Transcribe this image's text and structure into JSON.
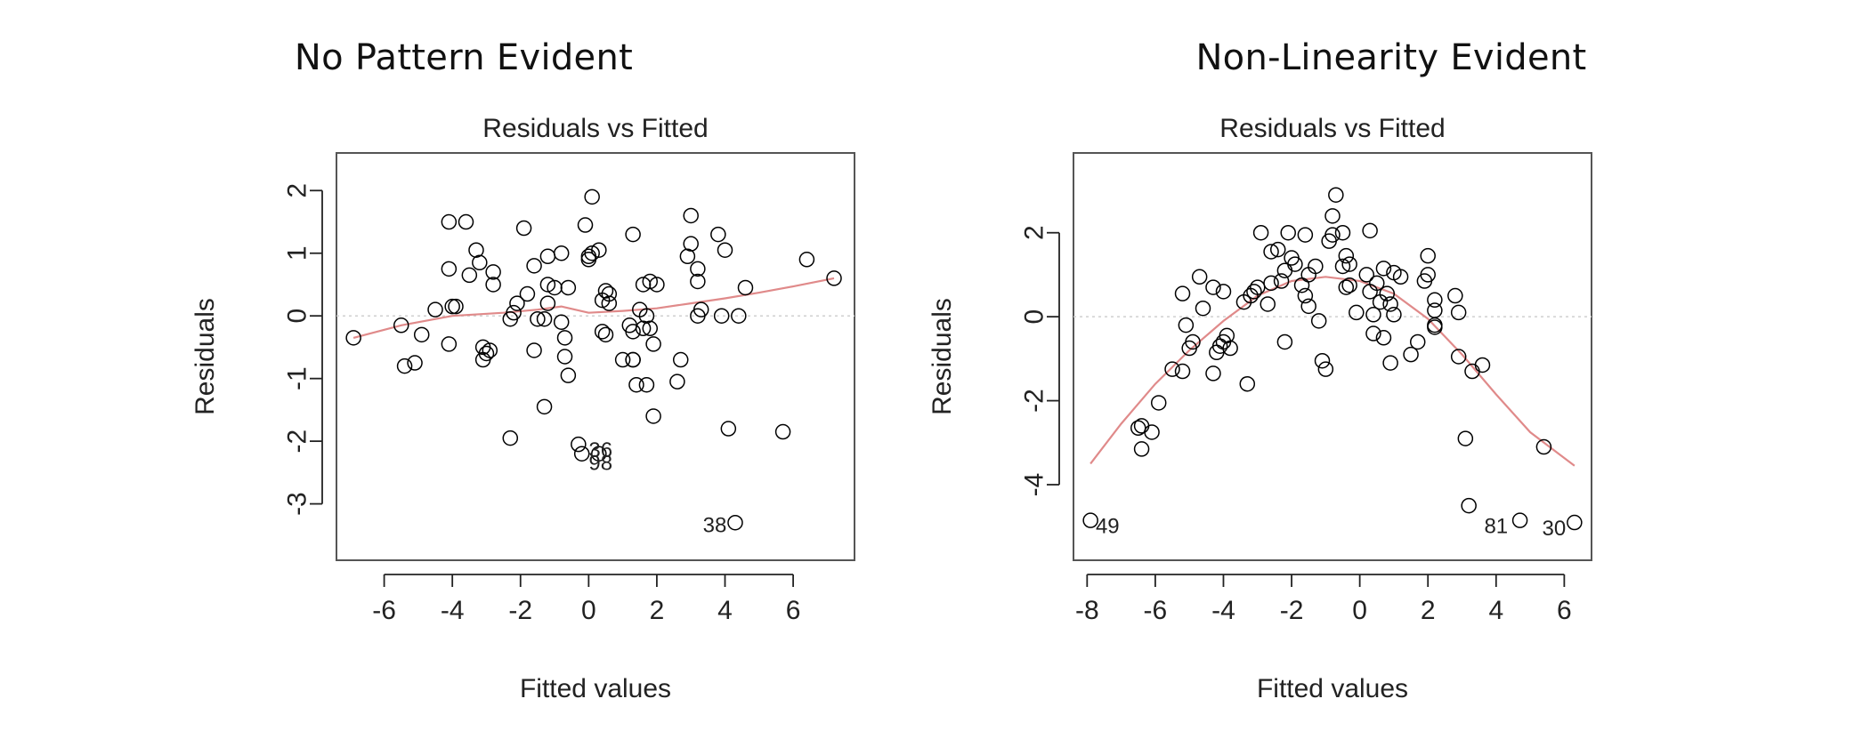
{
  "chart_data": [
    {
      "type": "scatter",
      "heading": "No Pattern Evident",
      "title": "Residuals vs Fitted",
      "xlabel": "Fitted values",
      "ylabel": "Residuals",
      "xlim": [
        -7.4,
        7.8
      ],
      "ylim": [
        -3.9,
        2.6
      ],
      "xticks": [
        -6,
        -4,
        -2,
        0,
        2,
        4,
        6
      ],
      "yticks": [
        -3,
        -2,
        -1,
        0,
        1,
        2
      ],
      "xtick_labels": [
        "-6",
        "-4",
        "-2",
        "0",
        "2",
        "4",
        "6"
      ],
      "ytick_labels": [
        "-3",
        "-2",
        "-1",
        "0",
        "1",
        "2"
      ],
      "grid": false,
      "reference_line_y": 0,
      "colors": {
        "points": "#000000",
        "smooth": "#e08a8a",
        "refline": "#cfcfcf",
        "frame": "#555555"
      },
      "points": [
        [
          -6.9,
          -0.35
        ],
        [
          -5.5,
          -0.15
        ],
        [
          -5.4,
          -0.8
        ],
        [
          -5.1,
          -0.75
        ],
        [
          -4.9,
          -0.3
        ],
        [
          -4.5,
          0.1
        ],
        [
          -4.1,
          1.5
        ],
        [
          -4.1,
          0.75
        ],
        [
          -4.0,
          0.15
        ],
        [
          -3.9,
          0.15
        ],
        [
          -4.1,
          -0.45
        ],
        [
          -3.6,
          1.5
        ],
        [
          -3.5,
          0.65
        ],
        [
          -3.3,
          1.05
        ],
        [
          -3.2,
          0.85
        ],
        [
          -3.1,
          -0.5
        ],
        [
          -3.1,
          -0.7
        ],
        [
          -3.0,
          -0.6
        ],
        [
          -2.9,
          -0.55
        ],
        [
          -2.8,
          0.7
        ],
        [
          -2.8,
          0.5
        ],
        [
          -2.3,
          -0.05
        ],
        [
          -2.3,
          -1.95
        ],
        [
          -2.2,
          0.05
        ],
        [
          -2.1,
          0.2
        ],
        [
          -1.9,
          1.4
        ],
        [
          -1.8,
          0.35
        ],
        [
          -1.6,
          -0.55
        ],
        [
          -1.6,
          0.8
        ],
        [
          -1.5,
          -0.05
        ],
        [
          -1.3,
          -0.05
        ],
        [
          -1.3,
          -1.45
        ],
        [
          -1.2,
          0.95
        ],
        [
          -1.2,
          0.2
        ],
        [
          -1.2,
          0.5
        ],
        [
          -1.0,
          0.45
        ],
        [
          -0.8,
          1.0
        ],
        [
          -0.8,
          -0.1
        ],
        [
          -0.6,
          0.45
        ],
        [
          -0.7,
          -0.35
        ],
        [
          -0.6,
          -0.95
        ],
        [
          -0.7,
          -0.65
        ],
        [
          -0.3,
          -2.05
        ],
        [
          -0.2,
          -2.2
        ],
        [
          -0.1,
          1.45
        ],
        [
          0.0,
          0.95
        ],
        [
          0.0,
          0.9
        ],
        [
          0.1,
          1.9
        ],
        [
          0.1,
          1.0
        ],
        [
          0.3,
          1.05
        ],
        [
          0.4,
          0.25
        ],
        [
          0.4,
          -0.25
        ],
        [
          0.5,
          -0.3
        ],
        [
          0.5,
          0.4
        ],
        [
          0.6,
          0.35
        ],
        [
          0.6,
          0.2
        ],
        [
          0.3,
          -2.2
        ],
        [
          1.0,
          -0.7
        ],
        [
          1.2,
          -0.15
        ],
        [
          1.3,
          1.3
        ],
        [
          1.3,
          -0.25
        ],
        [
          1.3,
          -0.7
        ],
        [
          1.3,
          -0.7
        ],
        [
          1.4,
          -1.1
        ],
        [
          1.5,
          0.1
        ],
        [
          1.6,
          0.5
        ],
        [
          1.6,
          -0.2
        ],
        [
          1.7,
          -1.1
        ],
        [
          1.7,
          0.0
        ],
        [
          1.8,
          0.55
        ],
        [
          1.8,
          -0.2
        ],
        [
          1.9,
          -0.45
        ],
        [
          1.9,
          -1.6
        ],
        [
          2.0,
          0.5
        ],
        [
          2.6,
          -1.05
        ],
        [
          2.7,
          -0.7
        ],
        [
          2.9,
          0.95
        ],
        [
          3.0,
          1.15
        ],
        [
          3.0,
          1.6
        ],
        [
          3.2,
          0.0
        ],
        [
          3.2,
          0.55
        ],
        [
          3.2,
          0.75
        ],
        [
          3.3,
          0.1
        ],
        [
          3.8,
          1.3
        ],
        [
          3.9,
          0.0
        ],
        [
          4.0,
          1.05
        ],
        [
          4.1,
          -1.8
        ],
        [
          4.4,
          0.0
        ],
        [
          4.3,
          -3.3
        ],
        [
          4.6,
          0.45
        ],
        [
          5.7,
          -1.85
        ],
        [
          6.4,
          0.9
        ],
        [
          7.2,
          0.6
        ]
      ],
      "smooth": [
        [
          -6.9,
          -0.35
        ],
        [
          -5.5,
          -0.15
        ],
        [
          -4,
          0.0
        ],
        [
          -2.5,
          0.05
        ],
        [
          -1.5,
          0.1
        ],
        [
          -0.8,
          0.15
        ],
        [
          0,
          0.05
        ],
        [
          1,
          0.08
        ],
        [
          2,
          0.12
        ],
        [
          3,
          0.2
        ],
        [
          4,
          0.28
        ],
        [
          5,
          0.37
        ],
        [
          6,
          0.47
        ],
        [
          7.2,
          0.6
        ]
      ],
      "annotations": [
        {
          "text": "36",
          "x": 0.35,
          "y": -2.15
        },
        {
          "text": "98",
          "x": 0.35,
          "y": -2.35
        },
        {
          "text": "38",
          "x": 3.7,
          "y": -3.35
        }
      ]
    },
    {
      "type": "scatter",
      "heading": "Non-Linearity Evident",
      "title": "Residuals vs Fitted",
      "xlabel": "Fitted values",
      "ylabel": "Residuals",
      "xlim": [
        -8.4,
        6.8
      ],
      "ylim": [
        -5.8,
        3.9
      ],
      "xticks": [
        -8,
        -6,
        -4,
        -2,
        0,
        2,
        4,
        6
      ],
      "yticks": [
        -4,
        -2,
        0,
        2
      ],
      "xtick_labels": [
        "-8",
        "-6",
        "-4",
        "-2",
        "0",
        "2",
        "4",
        "6"
      ],
      "ytick_labels": [
        "-4",
        "-2",
        "0",
        "2"
      ],
      "grid": false,
      "reference_line_y": 0,
      "colors": {
        "points": "#000000",
        "smooth": "#e08a8a",
        "refline": "#cfcfcf",
        "frame": "#555555"
      },
      "points": [
        [
          -7.9,
          -4.85
        ],
        [
          -6.5,
          -2.65
        ],
        [
          -6.4,
          -3.15
        ],
        [
          -6.4,
          -2.6
        ],
        [
          -6.1,
          -2.75
        ],
        [
          -5.9,
          -2.05
        ],
        [
          -5.5,
          -1.25
        ],
        [
          -5.2,
          -1.3
        ],
        [
          -5.2,
          0.55
        ],
        [
          -5.1,
          -0.2
        ],
        [
          -5.0,
          -0.75
        ],
        [
          -4.9,
          -0.6
        ],
        [
          -4.7,
          0.95
        ],
        [
          -4.6,
          0.2
        ],
        [
          -4.3,
          0.7
        ],
        [
          -4.3,
          -1.35
        ],
        [
          -4.2,
          -0.85
        ],
        [
          -4.1,
          -0.7
        ],
        [
          -4.0,
          -0.6
        ],
        [
          -4.0,
          0.6
        ],
        [
          -3.9,
          -0.45
        ],
        [
          -3.8,
          -0.75
        ],
        [
          -3.4,
          0.35
        ],
        [
          -3.3,
          -1.6
        ],
        [
          -3.2,
          0.5
        ],
        [
          -3.1,
          0.6
        ],
        [
          -3.0,
          0.7
        ],
        [
          -2.9,
          2.0
        ],
        [
          -2.7,
          0.3
        ],
        [
          -2.6,
          0.8
        ],
        [
          -2.6,
          1.55
        ],
        [
          -2.4,
          1.6
        ],
        [
          -2.3,
          0.85
        ],
        [
          -2.2,
          -0.6
        ],
        [
          -2.2,
          1.1
        ],
        [
          -2.1,
          2.0
        ],
        [
          -2.0,
          1.4
        ],
        [
          -1.9,
          1.25
        ],
        [
          -1.7,
          0.75
        ],
        [
          -1.6,
          1.95
        ],
        [
          -1.6,
          0.5
        ],
        [
          -1.5,
          1.0
        ],
        [
          -1.5,
          0.25
        ],
        [
          -1.3,
          1.2
        ],
        [
          -1.2,
          -0.1
        ],
        [
          -1.1,
          -1.05
        ],
        [
          -1.0,
          -1.25
        ],
        [
          -0.9,
          1.8
        ],
        [
          -0.8,
          2.4
        ],
        [
          -0.8,
          1.95
        ],
        [
          -0.7,
          2.9
        ],
        [
          -0.5,
          2.0
        ],
        [
          -0.5,
          1.2
        ],
        [
          -0.4,
          1.45
        ],
        [
          -0.3,
          1.25
        ],
        [
          -0.4,
          0.7
        ],
        [
          -0.3,
          0.75
        ],
        [
          -0.1,
          0.1
        ],
        [
          0.2,
          1.0
        ],
        [
          0.3,
          2.05
        ],
        [
          0.3,
          0.6
        ],
        [
          0.4,
          0.05
        ],
        [
          0.4,
          -0.4
        ],
        [
          0.5,
          0.8
        ],
        [
          0.6,
          0.35
        ],
        [
          0.7,
          1.15
        ],
        [
          0.7,
          -0.5
        ],
        [
          0.8,
          0.55
        ],
        [
          0.9,
          0.3
        ],
        [
          0.9,
          -1.1
        ],
        [
          1.0,
          0.05
        ],
        [
          1.0,
          1.05
        ],
        [
          1.2,
          0.95
        ],
        [
          1.5,
          -0.9
        ],
        [
          1.7,
          -0.6
        ],
        [
          1.9,
          0.85
        ],
        [
          2.0,
          1.45
        ],
        [
          2.0,
          1.0
        ],
        [
          2.2,
          0.4
        ],
        [
          2.2,
          0.15
        ],
        [
          2.2,
          -0.25
        ],
        [
          2.2,
          -0.2
        ],
        [
          2.8,
          0.5
        ],
        [
          2.9,
          0.1
        ],
        [
          2.9,
          -0.95
        ],
        [
          3.1,
          -2.9
        ],
        [
          3.2,
          -4.5
        ],
        [
          3.3,
          -1.3
        ],
        [
          3.6,
          -1.15
        ],
        [
          4.7,
          -4.85
        ],
        [
          5.4,
          -3.1
        ],
        [
          6.3,
          -4.9
        ]
      ],
      "smooth": [
        [
          -7.9,
          -3.5
        ],
        [
          -7,
          -2.55
        ],
        [
          -6,
          -1.6
        ],
        [
          -5,
          -0.8
        ],
        [
          -4,
          -0.1
        ],
        [
          -3,
          0.5
        ],
        [
          -2,
          0.85
        ],
        [
          -1,
          0.95
        ],
        [
          0,
          0.85
        ],
        [
          1,
          0.55
        ],
        [
          2,
          -0.05
        ],
        [
          3,
          -0.9
        ],
        [
          4,
          -1.85
        ],
        [
          5,
          -2.75
        ],
        [
          6.3,
          -3.55
        ]
      ],
      "annotations": [
        {
          "text": "49",
          "x": -7.4,
          "y": -5.0
        },
        {
          "text": "81",
          "x": 4.0,
          "y": -5.0
        },
        {
          "text": "30",
          "x": 5.7,
          "y": -5.05
        }
      ]
    }
  ]
}
